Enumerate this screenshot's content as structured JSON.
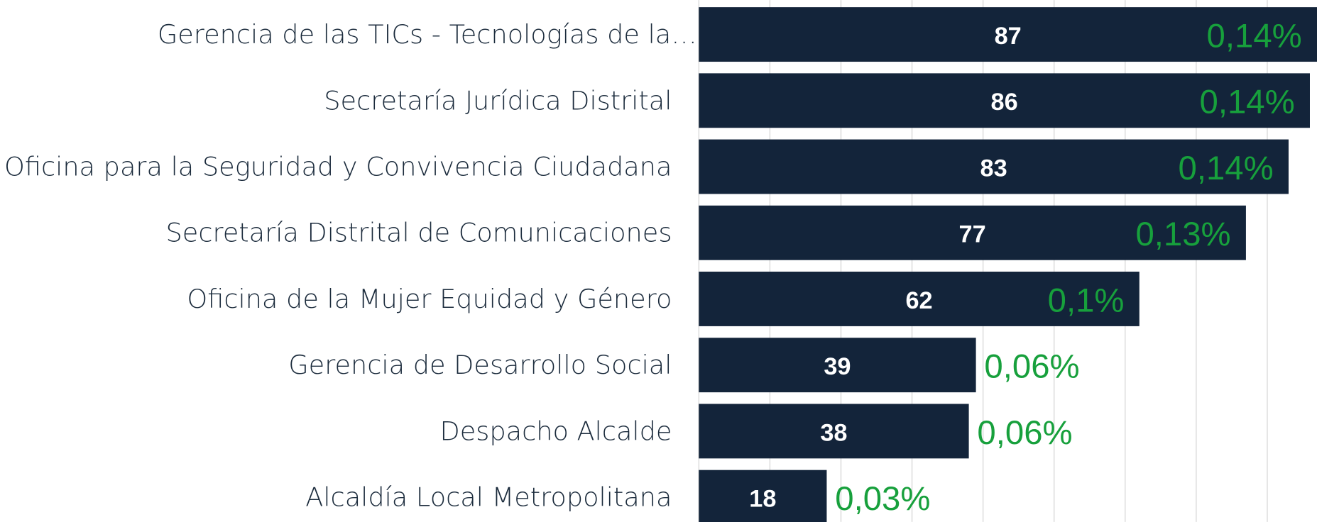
{
  "chart_data": {
    "type": "bar",
    "orientation": "horizontal",
    "categories": [
      "Gerencia de las TICs - Tecnologías de la…",
      "Secretaría Jurídica Distrital",
      "Oficina para la Seguridad y Convivencia Ciudadana",
      "Secretaría Distrital de Comunicaciones",
      "Oficina de la Mujer Equidad y Género",
      "Gerencia de Desarrollo Social",
      "Despacho Alcalde",
      "Alcaldía Local Metropolitana"
    ],
    "values": [
      87,
      86,
      83,
      77,
      62,
      39,
      38,
      18
    ],
    "percent_labels": [
      "0,14%",
      "0,14%",
      "0,14%",
      "0,13%",
      "0,1%",
      "0,06%",
      "0,06%",
      "0,03%"
    ],
    "color": "#13243a",
    "label_color": "#ffffff",
    "percent_color": "#17a03c",
    "xlim": [
      0,
      87
    ],
    "xticks": [
      0,
      10,
      20,
      30,
      40,
      50,
      60,
      70,
      80
    ],
    "grid": true
  }
}
